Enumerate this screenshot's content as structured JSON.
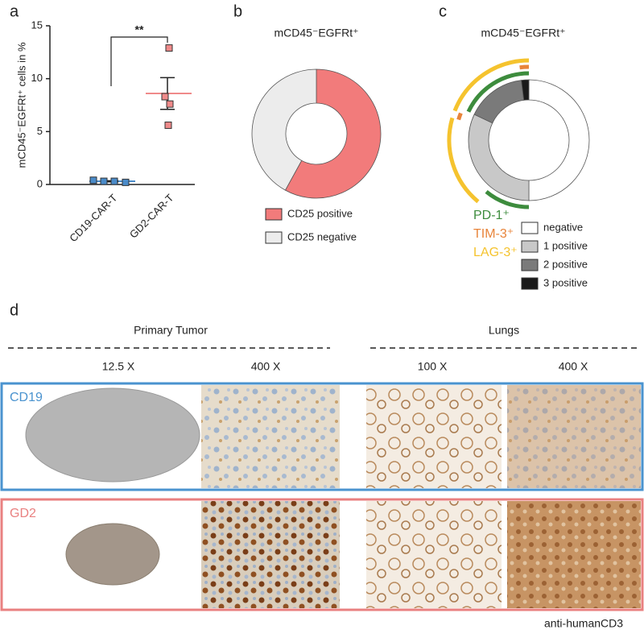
{
  "chart_data": [
    {
      "type": "dot",
      "panel_label": "a",
      "y_label": "mCD45⁻EGFRt⁺ cells in %",
      "categories": [
        "CD19-CAR-T",
        "GD2-CAR-T"
      ],
      "values": [
        [
          0.4,
          0.3,
          0.3,
          0.2
        ],
        [
          12.9,
          8.3,
          7.6,
          5.6
        ]
      ],
      "means": [
        0.3,
        8.6
      ],
      "sems": [
        0.05,
        1.5
      ],
      "colors": [
        "#4a8bc9",
        "#f08a8a"
      ],
      "significance": "**",
      "ylim": [
        0,
        15
      ],
      "yticks": [
        0,
        5,
        10,
        15
      ]
    },
    {
      "type": "donut",
      "panel_label": "b",
      "title": "mCD45⁻EGFRt⁺",
      "categories": [
        "CD25 positive",
        "CD25 negative"
      ],
      "values": [
        58,
        42
      ],
      "colors": [
        "#f27b7b",
        "#ececec"
      ]
    },
    {
      "type": "donut",
      "panel_label": "c",
      "title": "mCD45⁻EGFRt⁺",
      "categories": [
        "negative",
        "1 positive",
        "2 positive",
        "3 positive"
      ],
      "values": [
        50,
        32,
        16,
        2
      ],
      "colors": [
        "#ffffff",
        "#c8c8c8",
        "#7a7a7a",
        "#1a1a1a"
      ],
      "series": [
        {
          "name": "PD-1⁺",
          "color": "#3d8c3d",
          "arcs": [
            [
              50,
              61
            ],
            [
              82,
              100
            ]
          ]
        },
        {
          "name": "TIM-3⁺",
          "color": "#e8843a",
          "arcs": [
            [
              79.5,
              81
            ],
            [
              98,
              100
            ]
          ]
        },
        {
          "name": "LAG-3⁺",
          "color": "#f5c32e",
          "arcs": [
            [
              61,
              79.5
            ],
            [
              81,
              100
            ]
          ]
        }
      ]
    }
  ],
  "panel_d": {
    "label": "d",
    "groups": [
      {
        "title": "Primary Tumor",
        "columns": [
          "12.5 X",
          "400 X"
        ]
      },
      {
        "title": "Lungs",
        "columns": [
          "100 X",
          "400 X"
        ]
      }
    ],
    "rows": [
      {
        "name": "CD19",
        "color": "#4a93cf"
      },
      {
        "name": "GD2",
        "color": "#e98080"
      }
    ],
    "stain": "anti-humanCD3"
  }
}
